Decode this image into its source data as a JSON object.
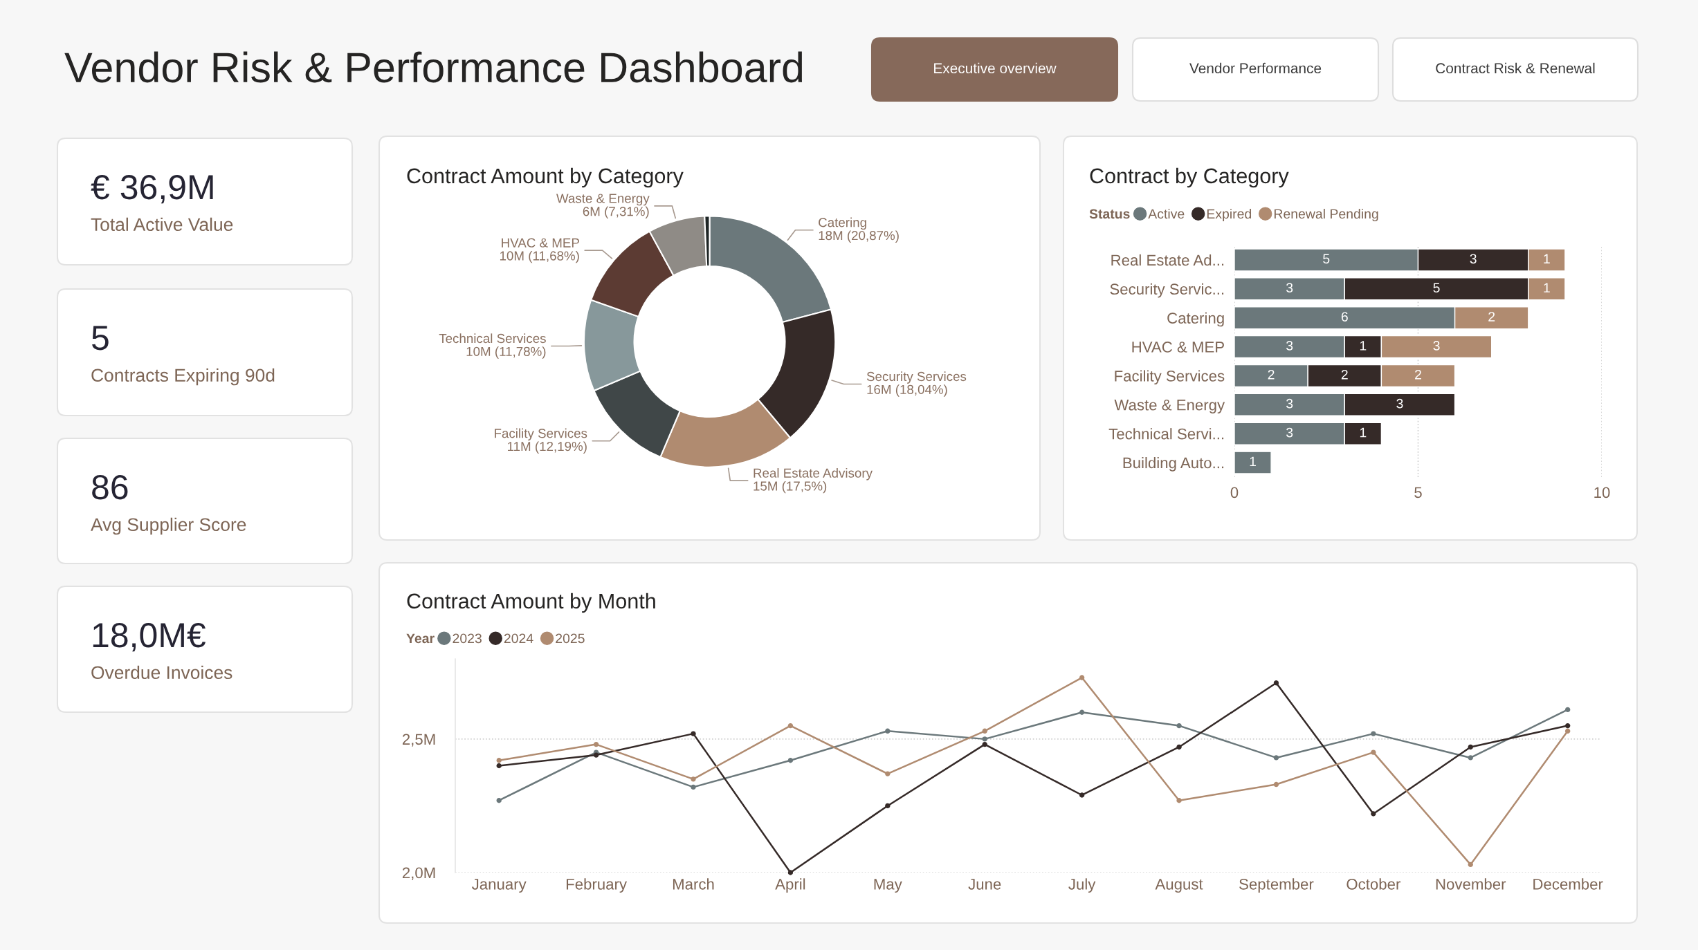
{
  "chart_data": [
    {
      "type": "other",
      "title": "Vendor Risk & Performance Dashboard",
      "annotations": [
        "Executive overview",
        "Vendor Performance",
        "Contract Risk & Renewal"
      ]
    },
    {
      "type": "other",
      "title": "€ 36,9M",
      "subtitle": "Total Active Value"
    },
    {
      "type": "other",
      "title": "5",
      "subtitle": "Contracts Expiring 90d"
    },
    {
      "type": "other",
      "title": "86",
      "subtitle": "Avg Supplier Score"
    },
    {
      "type": "other",
      "title": "18,0M€",
      "subtitle": "Overdue Invoices"
    },
    {
      "type": "donut",
      "title": "Contract Amount by Category",
      "categories": [
        "Catering",
        "Security Services",
        "Real Estate Advisory",
        "Facility Services",
        "Technical Services",
        "HVAC & MEP",
        "Waste & Energy",
        null
      ],
      "values": [
        20.87,
        18.04,
        17.5,
        12.19,
        11.78,
        11.68,
        7.31,
        0.63
      ],
      "value_labels": [
        "18M (20,87%)",
        "16M (18,04%)",
        "15M (17,5%)",
        "11M (12,19%)",
        "10M (11,78%)",
        "10M (11,68%)",
        "6M (7,31%)",
        null
      ],
      "colors": [
        "#6b787b",
        "#352a28",
        "#b08b70",
        "#404748",
        "#87989b",
        "#5c3b33",
        "#8f8b86",
        "#1e2525"
      ]
    },
    {
      "type": "bar",
      "title": "Contract by Category",
      "orientation": "horizontal",
      "stacked": true,
      "data_labels": true,
      "legend": "top left",
      "legend_title": "Status",
      "grid": "x",
      "categories": [
        "Real Estate Ad...",
        "Security Servic...",
        "Catering",
        "HVAC & MEP",
        "Facility Services",
        "Waste & Energy",
        "Technical Servi...",
        "Building Auto..."
      ],
      "xlim": [
        0,
        10
      ],
      "xticks": [
        0,
        5,
        10
      ],
      "series": [
        {
          "name": "Active",
          "color": "#6b787b",
          "values": [
            5,
            3,
            6,
            3,
            2,
            3,
            3,
            1
          ]
        },
        {
          "name": "Expired",
          "color": "#352a28",
          "values": [
            3,
            5,
            null,
            1,
            2,
            3,
            1,
            null
          ]
        },
        {
          "name": "Renewal Pending",
          "color": "#b08b70",
          "values": [
            1,
            1,
            2,
            3,
            2,
            null,
            null,
            null
          ]
        }
      ]
    },
    {
      "type": "line",
      "title": "Contract Amount by Month",
      "legend": "top left",
      "legend_title": "Year",
      "grid": "y",
      "marker": "circle",
      "categories": [
        "January",
        "February",
        "March",
        "April",
        "May",
        "June",
        "July",
        "August",
        "September",
        "October",
        "November",
        "December"
      ],
      "ylim": [
        2.0,
        2.8
      ],
      "yticks": [
        {
          "value": 2.0,
          "label": "2,0M"
        },
        {
          "value": 2.5,
          "label": "2,5M"
        }
      ],
      "series": [
        {
          "name": "2023",
          "color": "#6b787b",
          "values": [
            2.27,
            2.45,
            2.32,
            2.42,
            2.53,
            2.5,
            2.6,
            2.55,
            2.43,
            2.52,
            2.43,
            2.61
          ]
        },
        {
          "name": "2024",
          "color": "#352a28",
          "values": [
            2.4,
            2.44,
            2.52,
            2.0,
            2.25,
            2.48,
            2.29,
            2.47,
            2.71,
            2.22,
            2.47,
            2.55
          ]
        },
        {
          "name": "2025",
          "color": "#b08b70",
          "values": [
            2.42,
            2.48,
            2.35,
            2.55,
            2.37,
            2.53,
            2.73,
            2.27,
            2.33,
            2.45,
            2.03,
            2.53
          ]
        }
      ]
    }
  ]
}
